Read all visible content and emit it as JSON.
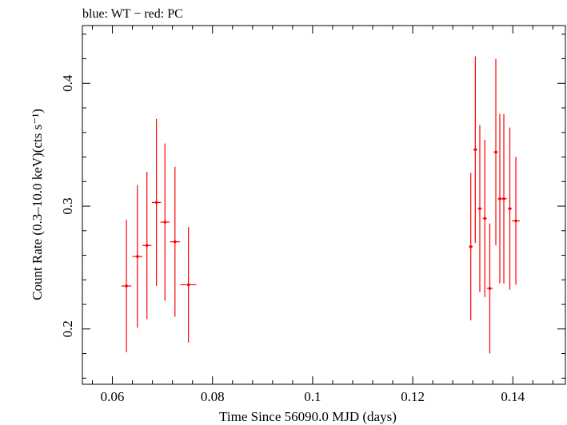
{
  "chart_data": {
    "type": "scatter",
    "title": "blue: WT − red: PC",
    "xlabel": "Time Since 56090.0 MJD (days)",
    "ylabel": "Count Rate (0.3–10.0 keV)(cts s⁻¹)",
    "xlim": [
      0.054,
      0.1505
    ],
    "ylim": [
      0.155,
      0.447
    ],
    "x_ticks": [
      0.06,
      0.08,
      0.1,
      0.12,
      0.14
    ],
    "x_tick_labels": [
      "0.06",
      "0.08",
      "0.1",
      "0.12",
      "0.14"
    ],
    "y_ticks": [
      0.2,
      0.3,
      0.4
    ],
    "y_tick_labels": [
      "0.2",
      "0.3",
      "0.4"
    ],
    "grid": false,
    "series": [
      {
        "color": "#ff0000",
        "points": [
          {
            "x": 0.0628,
            "xerr": 0.001,
            "y": 0.235,
            "yerr": 0.054
          },
          {
            "x": 0.065,
            "xerr": 0.001,
            "y": 0.259,
            "yerr": 0.058
          },
          {
            "x": 0.0669,
            "xerr": 0.0009,
            "y": 0.268,
            "yerr": 0.06
          },
          {
            "x": 0.0688,
            "xerr": 0.0009,
            "y": 0.303,
            "yerr": 0.068
          },
          {
            "x": 0.0705,
            "xerr": 0.0009,
            "y": 0.287,
            "yerr": 0.064
          },
          {
            "x": 0.0725,
            "xerr": 0.001,
            "y": 0.271,
            "yerr": 0.061
          },
          {
            "x": 0.0752,
            "xerr": 0.0016,
            "y": 0.236,
            "yerr": 0.047
          },
          {
            "x": 0.1316,
            "xerr": 0.0004,
            "y": 0.267,
            "yerr": 0.06
          },
          {
            "x": 0.1325,
            "xerr": 0.0004,
            "y": 0.346,
            "yerr": 0.076
          },
          {
            "x": 0.1334,
            "xerr": 0.0004,
            "y": 0.298,
            "yerr": 0.068
          },
          {
            "x": 0.1344,
            "xerr": 0.0004,
            "y": 0.29,
            "yerr": 0.064
          },
          {
            "x": 0.1354,
            "xerr": 0.0006,
            "y": 0.233,
            "yerr": 0.053
          },
          {
            "x": 0.1366,
            "xerr": 0.0004,
            "y": 0.344,
            "yerr": 0.076
          },
          {
            "x": 0.1374,
            "xerr": 0.0004,
            "y": 0.306,
            "yerr": 0.069
          },
          {
            "x": 0.1382,
            "xerr": 0.0006,
            "y": 0.306,
            "yerr": 0.069
          },
          {
            "x": 0.1394,
            "xerr": 0.0004,
            "y": 0.298,
            "yerr": 0.066
          },
          {
            "x": 0.1406,
            "xerr": 0.0008,
            "y": 0.288,
            "yerr": 0.052
          }
        ]
      }
    ]
  }
}
